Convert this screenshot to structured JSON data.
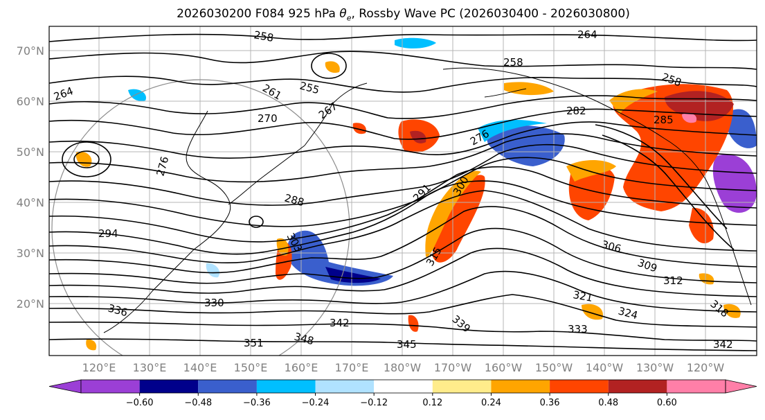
{
  "title_prefix": "2026030200 F084 925 hPa ",
  "title_symbol": "θ",
  "title_symbol_sub": "e",
  "title_suffix": ", Rossby Wave PC (2026030400 - 2026030800)",
  "lat_labels": [
    "70°N",
    "60°N",
    "50°N",
    "40°N",
    "30°N",
    "20°N"
  ],
  "lon_labels": [
    "120°E",
    "130°E",
    "140°E",
    "150°E",
    "160°E",
    "170°E",
    "180°W",
    "170°W",
    "160°W",
    "150°W",
    "140°W",
    "130°W",
    "120°W"
  ],
  "contour_labels": [
    "258",
    "264",
    "264",
    "255",
    "261",
    "270",
    "267",
    "258",
    "258",
    "276",
    "282",
    "285",
    "276",
    "288",
    "291",
    "294",
    "300",
    "303",
    "306",
    "309",
    "312",
    "315",
    "318",
    "321",
    "324",
    "330",
    "333",
    "336",
    "339",
    "342",
    "342",
    "345",
    "348",
    "351"
  ],
  "colorbar": {
    "ticks": [
      "−0.60",
      "−0.48",
      "−0.36",
      "−0.24",
      "−0.12",
      "0.12",
      "0.24",
      "0.36",
      "0.48",
      "0.60"
    ],
    "colors": [
      "#9b3fd6",
      "#00008b",
      "#3a5fcd",
      "#00bfff",
      "#b0e2ff",
      "#ffffff",
      "#ffec8b",
      "#ffa500",
      "#ff4500",
      "#b22222",
      "#ff7fa8",
      "#ff7fa8"
    ]
  }
}
